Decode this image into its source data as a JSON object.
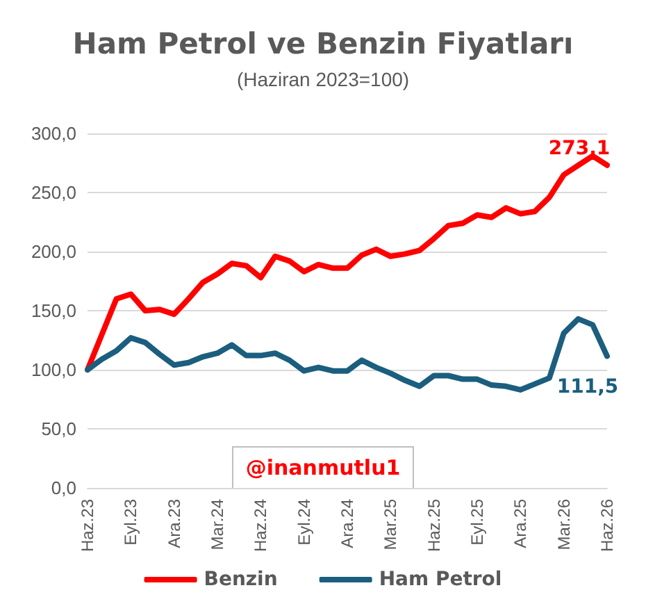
{
  "chart_data": {
    "type": "line",
    "title": "Ham Petrol ve Benzin Fiyatları",
    "subtitle": "(Haziran 2023=100)",
    "categories": [
      "Haz.23",
      null,
      null,
      "Eyl.23",
      null,
      null,
      "Ara.23",
      null,
      null,
      "Mar.24",
      null,
      null,
      "Haz.24",
      null,
      null,
      "Eyl.24",
      null,
      null,
      "Ara.24",
      null,
      null,
      "Mar.25",
      null,
      null,
      "Haz.25",
      null,
      null,
      "Eyl.25",
      null,
      null,
      "Ara.25",
      null,
      null,
      "Mar.26",
      null,
      null,
      "Haz.26"
    ],
    "series": [
      {
        "name": "Benzin",
        "color": "#ff0000",
        "values": [
          100,
          130,
          160,
          164,
          150,
          151,
          147,
          160,
          174,
          181,
          190,
          188,
          178,
          196,
          192,
          183,
          189,
          186,
          186,
          197,
          202,
          196,
          198,
          201,
          211,
          222,
          224,
          231,
          229,
          237,
          232,
          234,
          246,
          265,
          273,
          281,
          273.1
        ],
        "value_labels": [
          null,
          null,
          null,
          null,
          null,
          null,
          null,
          null,
          null,
          null,
          null,
          null,
          null,
          null,
          null,
          null,
          null,
          null,
          null,
          null,
          null,
          null,
          null,
          null,
          null,
          null,
          null,
          null,
          null,
          null,
          null,
          null,
          null,
          null,
          null,
          null,
          "273,1"
        ]
      },
      {
        "name": "Ham Petrol",
        "color": "#1b5e7e",
        "values": [
          100,
          109,
          116,
          127,
          123,
          113,
          104,
          106,
          111,
          114,
          121,
          112,
          112,
          114,
          108,
          99,
          102,
          99,
          99,
          108,
          102,
          97,
          91,
          86,
          95,
          95,
          92,
          92,
          87,
          86,
          83,
          88,
          93,
          131,
          143,
          138,
          111.5
        ],
        "value_labels": [
          null,
          null,
          null,
          null,
          null,
          null,
          null,
          null,
          null,
          null,
          null,
          null,
          null,
          null,
          null,
          null,
          null,
          null,
          null,
          null,
          null,
          null,
          null,
          null,
          null,
          null,
          null,
          null,
          null,
          null,
          null,
          null,
          null,
          null,
          null,
          null,
          "111,5"
        ]
      }
    ],
    "ylim": [
      0,
      300
    ],
    "yticks": [
      {
        "value": 0,
        "label": "0,0"
      },
      {
        "value": 50,
        "label": "50,0"
      },
      {
        "value": 100,
        "label": "100,0"
      },
      {
        "value": 150,
        "label": "150,0"
      },
      {
        "value": 200,
        "label": "200,0"
      },
      {
        "value": 250,
        "label": "250,0"
      },
      {
        "value": 300,
        "label": "300,0"
      }
    ],
    "grid": "y",
    "legend": "bottom",
    "marker": "none",
    "line_style": "solid",
    "annotations": [
      "@inanmutlu1"
    ]
  }
}
